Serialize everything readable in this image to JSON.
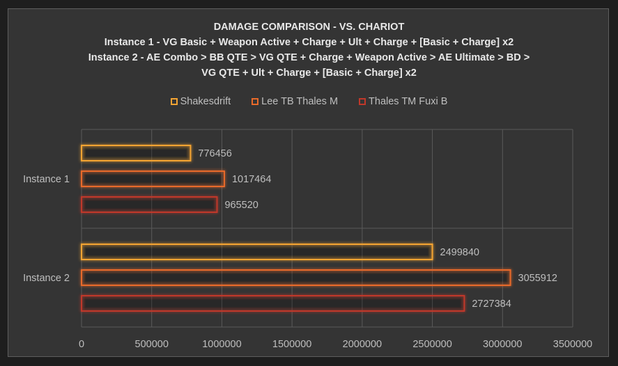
{
  "title_lines": [
    "DAMAGE COMPARISON - VS. CHARIOT",
    "Instance 1 - VG Basic + Weapon Active + Charge + Ult + Charge +  [Basic + Charge] x2",
    "Instance 2 - AE Combo > BB QTE > VG QTE + Charge + Weapon Active > AE Ultimate > BD >",
    "VG QTE + Ult + Charge +  [Basic + Charge] x2"
  ],
  "chart_data": {
    "type": "bar",
    "orientation": "horizontal",
    "title": "DAMAGE COMPARISON - VS. CHARIOT",
    "categories": [
      "Instance 1",
      "Instance 2"
    ],
    "series": [
      {
        "name": "Shakesdrift",
        "color": "#f4a433",
        "values": [
          776456,
          2499840
        ]
      },
      {
        "name": "Lee TB Thales M",
        "color": "#e86a2a",
        "values": [
          1017464,
          3055912
        ]
      },
      {
        "name": "Thales TM Fuxi B",
        "color": "#c0382a",
        "values": [
          965520,
          2727384
        ]
      }
    ],
    "xlim": [
      0,
      3500000
    ],
    "x_ticks": [
      "0",
      "500000",
      "1000000",
      "1500000",
      "2000000",
      "2500000",
      "3000000",
      "3500000"
    ],
    "data_labels": [
      [
        "776456",
        "2499840"
      ],
      [
        "1017464",
        "3055912"
      ],
      [
        "965520",
        "2727384"
      ]
    ],
    "grid": true,
    "legend_position": "top"
  },
  "colors": {
    "background": "#343434",
    "gridline": "#5a5a5a",
    "text": "#bfbfbf",
    "title": "#e8e8e8"
  }
}
